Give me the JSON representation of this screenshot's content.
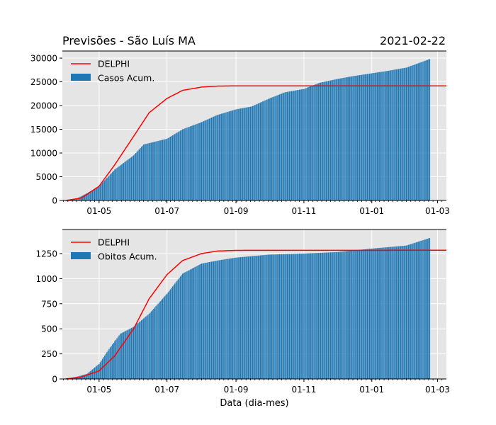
{
  "title_left": "Previsões - São Luís MA",
  "title_right": "2021-02-22",
  "xlabel": "Data (dia-mes)",
  "colors": {
    "bars": "#1f77b4",
    "model": "#ff0000",
    "background": "#e5e5e5",
    "grid": "#ffffff"
  },
  "chart_data": [
    {
      "type": "bar",
      "x_axis": "date",
      "x_ticks": [
        "01-05",
        "01-07",
        "01-09",
        "01-11",
        "01-01",
        "01-03"
      ],
      "y_ticks": [
        "0",
        "5000",
        "10000",
        "15000",
        "20000",
        "25000",
        "30000"
      ],
      "ylim": [
        0,
        31500
      ],
      "grid": true,
      "legend_position": "top-left",
      "series": [
        {
          "name": "DELPHI",
          "type": "line",
          "color": "#ff0000",
          "points": [
            [
              "2020-04-01",
              0
            ],
            [
              "2020-04-15",
              500
            ],
            [
              "2020-05-01",
              3000
            ],
            [
              "2020-05-15",
              7500
            ],
            [
              "2020-06-01",
              13500
            ],
            [
              "2020-06-15",
              18500
            ],
            [
              "2020-07-01",
              21500
            ],
            [
              "2020-07-15",
              23200
            ],
            [
              "2020-08-01",
              23900
            ],
            [
              "2020-08-15",
              24100
            ],
            [
              "2020-09-01",
              24150
            ],
            [
              "2021-03-05",
              24150
            ]
          ]
        },
        {
          "name": "Casos Acum.",
          "type": "bar",
          "color": "#1f77b4",
          "points": [
            [
              "2020-04-01",
              0
            ],
            [
              "2020-04-10",
              300
            ],
            [
              "2020-04-20",
              1500
            ],
            [
              "2020-05-01",
              3000
            ],
            [
              "2020-05-15",
              6500
            ],
            [
              "2020-06-01",
              9500
            ],
            [
              "2020-06-10",
              11800
            ],
            [
              "2020-07-01",
              13000
            ],
            [
              "2020-07-15",
              15000
            ],
            [
              "2020-08-01",
              16500
            ],
            [
              "2020-08-15",
              18000
            ],
            [
              "2020-09-01",
              19200
            ],
            [
              "2020-09-15",
              19800
            ],
            [
              "2020-10-01",
              21500
            ],
            [
              "2020-10-15",
              22800
            ],
            [
              "2020-11-01",
              23500
            ],
            [
              "2020-11-15",
              24800
            ],
            [
              "2020-12-01",
              25600
            ],
            [
              "2020-12-15",
              26200
            ],
            [
              "2021-01-01",
              26800
            ],
            [
              "2021-01-15",
              27300
            ],
            [
              "2021-02-01",
              28000
            ],
            [
              "2021-02-22",
              29800
            ]
          ]
        }
      ]
    },
    {
      "type": "bar",
      "x_axis": "date",
      "x_ticks": [
        "01-05",
        "01-07",
        "01-09",
        "01-11",
        "01-01",
        "01-03"
      ],
      "y_ticks": [
        "0",
        "250",
        "500",
        "750",
        "1000",
        "1250"
      ],
      "ylim": [
        0,
        1490
      ],
      "grid": true,
      "legend_position": "top-left",
      "series": [
        {
          "name": "DELPHI",
          "type": "line",
          "color": "#ff0000",
          "points": [
            [
              "2020-04-01",
              0
            ],
            [
              "2020-04-15",
              20
            ],
            [
              "2020-05-01",
              80
            ],
            [
              "2020-05-15",
              230
            ],
            [
              "2020-06-01",
              500
            ],
            [
              "2020-06-15",
              800
            ],
            [
              "2020-07-01",
              1040
            ],
            [
              "2020-07-15",
              1180
            ],
            [
              "2020-08-01",
              1250
            ],
            [
              "2020-08-15",
              1275
            ],
            [
              "2020-09-01",
              1282
            ],
            [
              "2021-03-05",
              1283
            ]
          ]
        },
        {
          "name": "Obitos Acum.",
          "type": "bar",
          "color": "#1f77b4",
          "points": [
            [
              "2020-04-01",
              0
            ],
            [
              "2020-04-10",
              20
            ],
            [
              "2020-04-20",
              50
            ],
            [
              "2020-05-01",
              150
            ],
            [
              "2020-05-10",
              300
            ],
            [
              "2020-05-20",
              450
            ],
            [
              "2020-06-01",
              520
            ],
            [
              "2020-06-15",
              650
            ],
            [
              "2020-07-01",
              850
            ],
            [
              "2020-07-15",
              1050
            ],
            [
              "2020-08-01",
              1150
            ],
            [
              "2020-08-15",
              1180
            ],
            [
              "2020-09-01",
              1210
            ],
            [
              "2020-10-01",
              1240
            ],
            [
              "2020-11-01",
              1250
            ],
            [
              "2020-12-01",
              1265
            ],
            [
              "2021-01-01",
              1300
            ],
            [
              "2021-02-01",
              1330
            ],
            [
              "2021-02-22",
              1405
            ]
          ]
        }
      ]
    }
  ]
}
